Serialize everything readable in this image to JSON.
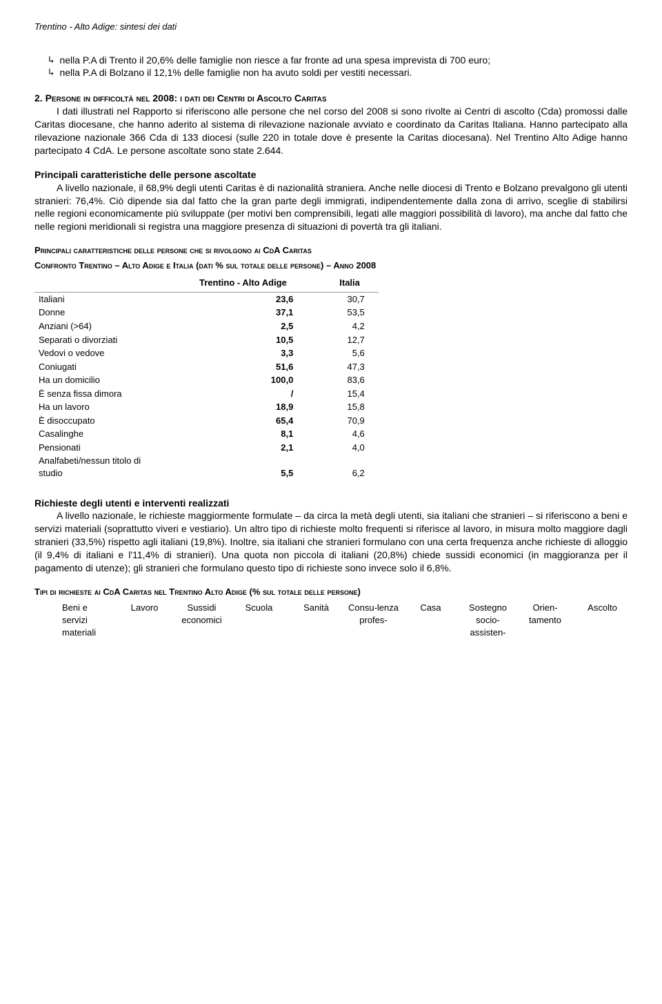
{
  "header": "Trentino - Alto Adige: sintesi dei dati",
  "bullets": {
    "b1": "nella P.A di Trento il 20,6% delle famiglie non riesce a far fronte ad una spesa imprevista di 700 euro;",
    "b2": "nella P.A di Bolzano il 12,1% delle famiglie non ha avuto soldi per vestiti necessari."
  },
  "section2": {
    "num": "2. ",
    "heading": "Persone in difficoltà nel 2008: i dati dei Centri di Ascolto Caritas",
    "body": "I dati illustrati nel Rapporto si riferiscono alle persone che nel corso del 2008 si sono rivolte ai Centri di ascolto (Cda) promossi dalle Caritas diocesane, che hanno aderito al sistema di rilevazione nazionale avviato e coordinato da Caritas Italiana. Hanno partecipato alla rilevazione nazionale 366 Cda di 133 diocesi (sulle 220 in totale dove è presente la Caritas diocesana). Nel Trentino Alto Adige hanno partecipato 4 CdA. Le persone ascoltate sono state 2.644."
  },
  "section3": {
    "heading": "Principali caratteristiche delle persone ascoltate",
    "body": "A livello nazionale, il 68,9% degli utenti Caritas è di nazionalità straniera. Anche nelle diocesi di Trento e Bolzano prevalgono gli utenti stranieri: 76,4%. Ciò dipende sia dal fatto che la gran parte degli immigrati, indipendentemente dalla zona di arrivo, sceglie di stabilirsi nelle regioni economicamente più sviluppate (per motivi ben comprensibili, legati alle maggiori possibilità di lavoro), ma anche dal fatto che nelle regioni meridionali si registra una maggiore presenza di situazioni di povertà tra gli italiani."
  },
  "table1": {
    "title1": "Principali caratteristiche delle persone che si rivolgono ai CdA Caritas",
    "title2": "Confronto Trentino – Alto Adige e Italia (dati % sul totale delle persone) – Anno 2008",
    "col1": "Trentino - Alto Adige",
    "col2": "Italia",
    "rows": [
      {
        "label": "Italiani",
        "v1": "23,6",
        "v2": "30,7"
      },
      {
        "label": "Donne",
        "v1": "37,1",
        "v2": "53,5"
      },
      {
        "label": "Anziani (>64)",
        "v1": "2,5",
        "v2": "4,2"
      },
      {
        "label": "Separati o divorziati",
        "v1": "10,5",
        "v2": "12,7"
      },
      {
        "label": "Vedovi o vedove",
        "v1": "3,3",
        "v2": "5,6"
      },
      {
        "label": "Coniugati",
        "v1": "51,6",
        "v2": "47,3"
      },
      {
        "label": "Ha un domicilio",
        "v1": "100,0",
        "v2": "83,6"
      },
      {
        "label": "È senza fissa dimora",
        "v1": "/",
        "v2": "15,4"
      },
      {
        "label": "Ha un lavoro",
        "v1": "18,9",
        "v2": "15,8"
      },
      {
        "label": "È disoccupato",
        "v1": "65,4",
        "v2": "70,9"
      },
      {
        "label": "Casalinghe",
        "v1": "8,1",
        "v2": "4,6"
      },
      {
        "label": "Pensionati",
        "v1": "2,1",
        "v2": "4,0"
      },
      {
        "label": "Analfabeti/nessun titolo di studio",
        "v1": "5,5",
        "v2": "6,2"
      }
    ]
  },
  "section4": {
    "heading": "Richieste degli utenti e interventi realizzati",
    "body": "A livello nazionale, le richieste maggiormente formulate – da circa la metà degli utenti, sia italiani che stranieri – si riferiscono a beni e servizi materiali (soprattutto viveri e vestiario). Un altro tipo di richieste molto frequenti si riferisce al lavoro, in misura molto maggiore dagli stranieri (33,5%) rispetto agli italiani (19,8%). Inoltre, sia italiani che stranieri formulano con una certa frequenza anche richieste di alloggio (il 9,4% di italiani e l'11,4% di stranieri). Una quota non piccola di italiani (20,8%) chiede sussidi economici (in maggioranza per il pagamento di utenze); gli stranieri che formulano questo tipo di richieste sono invece solo il 6,8%."
  },
  "table2": {
    "title": "Tipi di richieste ai CdA Caritas nel Trentino Alto Adige (% sul totale delle persone)",
    "headers": [
      "Beni e servizi materiali",
      "Lavoro",
      "Sussidi economici",
      "Scuola",
      "Sanità",
      "Consu-lenza profes-",
      "Casa",
      "Sostegno socio-assisten-",
      "Orien-tamento",
      "Ascolto"
    ]
  }
}
